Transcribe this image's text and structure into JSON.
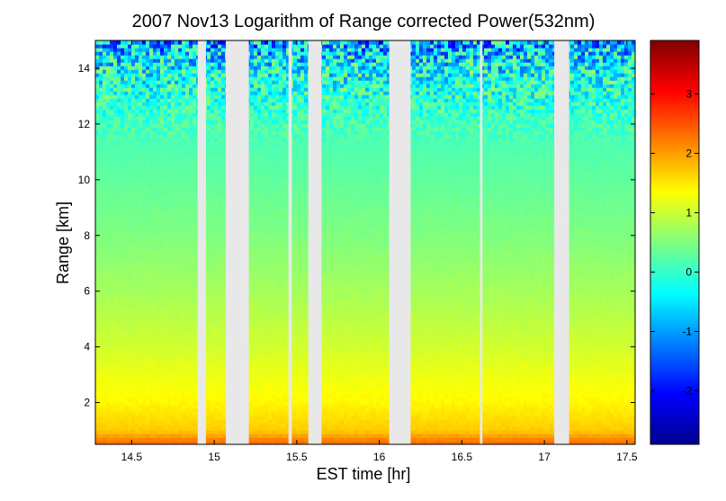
{
  "chart_data": {
    "type": "heatmap",
    "title": "2007 Nov13  Logarithm of Range corrected Power(532nm)",
    "xlabel": "EST time [hr]",
    "ylabel": "Range [km]",
    "xlim": [
      14.28,
      17.55
    ],
    "ylim": [
      0.5,
      15
    ],
    "xticks": [
      14.5,
      15,
      15.5,
      16,
      16.5,
      17,
      17.5
    ],
    "xtick_labels": [
      "14.5",
      "15",
      "15.5",
      "16",
      "16.5",
      "17",
      "17.5"
    ],
    "yticks": [
      2,
      4,
      6,
      8,
      10,
      12,
      14
    ],
    "ytick_labels": [
      "2",
      "4",
      "6",
      "8",
      "10",
      "12",
      "14"
    ],
    "colorbar": {
      "colormap": "jet",
      "clim": [
        -2.9,
        3.9
      ],
      "ticks": [
        -2,
        -1,
        0,
        1,
        2,
        3
      ],
      "tick_labels": [
        "-2",
        "-1",
        "0",
        "1",
        "2",
        "3"
      ]
    },
    "value_profile": {
      "description_range_km": [
        0.6,
        1.0,
        2,
        4,
        6,
        8,
        10,
        12,
        14,
        15
      ],
      "log_power": [
        2.3,
        1.7,
        1.4,
        1.05,
        0.75,
        0.5,
        0.3,
        0.1,
        -0.3,
        -0.9
      ]
    },
    "data_gaps_hr": [
      [
        14.9,
        14.95
      ],
      [
        15.07,
        15.21
      ],
      [
        15.45,
        15.47
      ],
      [
        15.57,
        15.65
      ],
      [
        16.06,
        16.19
      ],
      [
        16.61,
        16.625
      ],
      [
        17.06,
        17.15
      ]
    ],
    "grid": false,
    "background_gap_color": "#e8e8e8"
  }
}
